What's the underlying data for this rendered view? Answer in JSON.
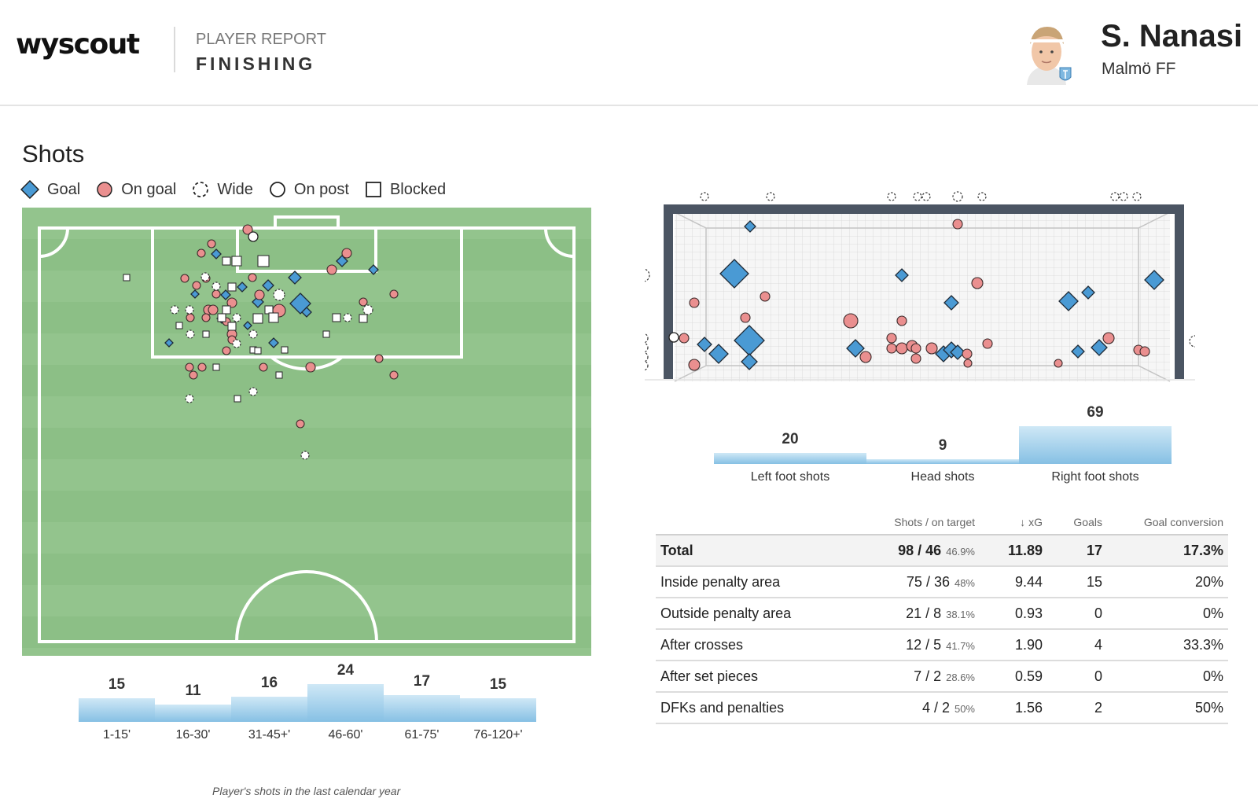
{
  "header": {
    "logo": "wyscout",
    "report_label": "PLAYER REPORT",
    "report_title": "FINISHING",
    "player_name": "S. Nanasi",
    "team_name": "Malmö FF"
  },
  "section_title": "Shots",
  "legend": [
    {
      "label": "Goal",
      "icon": "goal-diamond-icon"
    },
    {
      "label": "On goal",
      "icon": "on-goal-circle-icon"
    },
    {
      "label": "Wide",
      "icon": "wide-dashed-circle-icon"
    },
    {
      "label": "On post",
      "icon": "on-post-circle-icon"
    },
    {
      "label": "Blocked",
      "icon": "blocked-square-icon"
    }
  ],
  "colors": {
    "goal": "#4a9ad4",
    "on_goal": "#ea8f8f",
    "pitch": "#92c28c",
    "bar": "#86c0e4",
    "frame": "#4b5563"
  },
  "time_bars": {
    "categories": [
      "1-15'",
      "16-30'",
      "31-45+'",
      "46-60'",
      "61-75'",
      "76-120+'"
    ],
    "values": [
      15,
      11,
      16,
      24,
      17,
      15
    ]
  },
  "body_part_bars": {
    "categories": [
      "Left foot shots",
      "Head shots",
      "Right foot shots"
    ],
    "values": [
      20,
      9,
      69
    ]
  },
  "footnote": "Player's shots in the last calendar year",
  "stats_table": {
    "headers": [
      "",
      "Shots / on target",
      "↓ xG",
      "Goals",
      "Goal conversion"
    ],
    "rows": [
      {
        "label": "Total",
        "shots": "98 / 46",
        "pct": "46.9%",
        "xg": "11.89",
        "goals": "17",
        "conversion": "17.3%"
      },
      {
        "label": "Inside penalty area",
        "shots": "75 / 36",
        "pct": "48%",
        "xg": "9.44",
        "goals": "15",
        "conversion": "20%"
      },
      {
        "label": "Outside penalty area",
        "shots": "21 / 8",
        "pct": "38.1%",
        "xg": "0.93",
        "goals": "0",
        "conversion": "0%"
      },
      {
        "label": "After crosses",
        "shots": "12 / 5",
        "pct": "41.7%",
        "xg": "1.90",
        "goals": "4",
        "conversion": "33.3%"
      },
      {
        "label": "After set pieces",
        "shots": "7 / 2",
        "pct": "28.6%",
        "xg": "0.59",
        "goals": "0",
        "conversion": "0%"
      },
      {
        "label": "DFKs and penalties",
        "shots": "4 / 2",
        "pct": "50%",
        "xg": "1.56",
        "goals": "2",
        "conversion": "50%"
      }
    ]
  }
}
